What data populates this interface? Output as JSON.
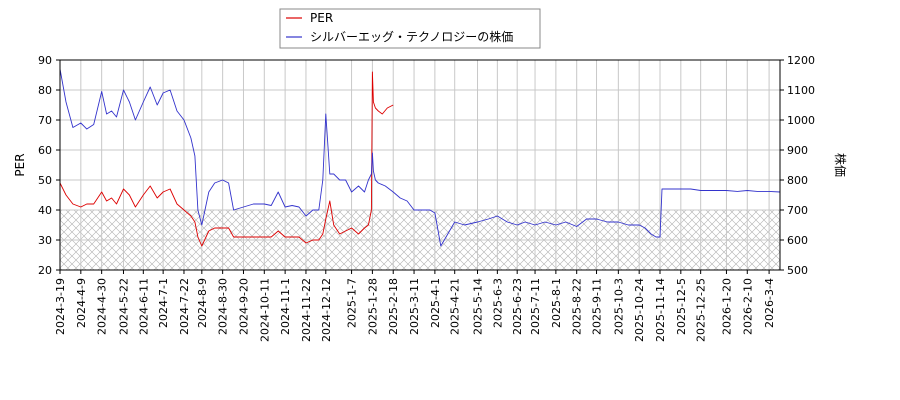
{
  "chart_data": {
    "type": "line",
    "legend_position": "top-center",
    "grid": true,
    "colors": {
      "per": "#dd0000",
      "price": "#3333cc",
      "grid": "#c8c8c8",
      "hatch": "#b0b0b0"
    },
    "y_left": {
      "label": "PER",
      "range": [
        20,
        90
      ],
      "ticks": [
        20,
        30,
        40,
        50,
        60,
        70,
        80,
        90
      ],
      "hatch_below": 40
    },
    "y_right": {
      "label": "株価",
      "range": [
        500,
        1200
      ],
      "ticks": [
        500,
        600,
        700,
        800,
        900,
        1000,
        1100,
        1200
      ]
    },
    "x_range": [
      "2024-03-19",
      "2026-03-15"
    ],
    "x_ticks": [
      "2024-3-19",
      "2024-4-9",
      "2024-4-30",
      "2024-5-22",
      "2024-6-11",
      "2024-7-1",
      "2024-7-22",
      "2024-8-9",
      "2024-8-30",
      "2024-9-20",
      "2024-10-11",
      "2024-11-1",
      "2024-11-22",
      "2024-12-12",
      "2025-1-7",
      "2025-1-28",
      "2025-2-18",
      "2025-3-11",
      "2025-4-1",
      "2025-4-21",
      "2025-5-14",
      "2025-6-3",
      "2025-6-23",
      "2025-7-11",
      "2025-8-1",
      "2025-8-22",
      "2025-9-11",
      "2025-10-3",
      "2025-10-24",
      "2025-11-14",
      "2025-12-5",
      "2025-12-25",
      "2026-1-20",
      "2026-2-10",
      "2026-3-4"
    ],
    "series": [
      {
        "name": "PER",
        "axis": "left",
        "x": [
          "2024-03-19",
          "2024-03-25",
          "2024-04-01",
          "2024-04-09",
          "2024-04-15",
          "2024-04-22",
          "2024-04-30",
          "2024-05-05",
          "2024-05-10",
          "2024-05-15",
          "2024-05-22",
          "2024-05-28",
          "2024-06-03",
          "2024-06-11",
          "2024-06-18",
          "2024-06-25",
          "2024-07-01",
          "2024-07-08",
          "2024-07-15",
          "2024-07-22",
          "2024-07-29",
          "2024-08-02",
          "2024-08-05",
          "2024-08-09",
          "2024-08-16",
          "2024-08-22",
          "2024-08-30",
          "2024-09-05",
          "2024-09-10",
          "2024-09-20",
          "2024-09-30",
          "2024-10-11",
          "2024-10-18",
          "2024-10-25",
          "2024-11-01",
          "2024-11-08",
          "2024-11-15",
          "2024-11-22",
          "2024-11-29",
          "2024-12-05",
          "2024-12-09",
          "2024-12-12",
          "2024-12-16",
          "2024-12-20",
          "2024-12-26",
          "2025-01-01",
          "2025-01-07",
          "2025-01-14",
          "2025-01-20",
          "2025-01-24",
          "2025-01-27",
          "2025-01-28",
          "2025-01-29",
          "2025-01-31",
          "2025-02-03",
          "2025-02-07",
          "2025-02-12",
          "2025-02-18"
        ],
        "y": [
          49,
          45,
          42,
          41,
          42,
          42,
          46,
          43,
          44,
          42,
          47,
          45,
          41,
          45,
          48,
          44,
          46,
          47,
          42,
          40,
          38,
          36,
          31,
          28,
          33,
          34,
          34,
          34,
          31,
          31,
          31,
          31,
          31,
          33,
          31,
          31,
          31,
          29,
          30,
          30,
          32,
          37,
          43,
          35,
          32,
          33,
          34,
          32,
          34,
          35,
          40,
          86,
          76,
          74,
          73,
          72,
          74,
          75
        ]
      },
      {
        "name": "シルバーエッグ・テクノロジーの株価",
        "axis": "right",
        "x": [
          "2024-03-19",
          "2024-03-25",
          "2024-04-01",
          "2024-04-09",
          "2024-04-15",
          "2024-04-22",
          "2024-04-30",
          "2024-05-05",
          "2024-05-10",
          "2024-05-15",
          "2024-05-22",
          "2024-05-28",
          "2024-06-03",
          "2024-06-11",
          "2024-06-18",
          "2024-06-25",
          "2024-07-01",
          "2024-07-08",
          "2024-07-15",
          "2024-07-22",
          "2024-07-29",
          "2024-08-02",
          "2024-08-05",
          "2024-08-09",
          "2024-08-16",
          "2024-08-22",
          "2024-08-30",
          "2024-09-05",
          "2024-09-10",
          "2024-09-20",
          "2024-09-30",
          "2024-10-11",
          "2024-10-18",
          "2024-10-25",
          "2024-11-01",
          "2024-11-08",
          "2024-11-15",
          "2024-11-22",
          "2024-11-29",
          "2024-12-05",
          "2024-12-09",
          "2024-12-12",
          "2024-12-16",
          "2024-12-20",
          "2024-12-26",
          "2025-01-01",
          "2025-01-07",
          "2025-01-14",
          "2025-01-20",
          "2025-01-24",
          "2025-01-27",
          "2025-01-28",
          "2025-01-29",
          "2025-01-31",
          "2025-02-03",
          "2025-02-10",
          "2025-02-18",
          "2025-02-25",
          "2025-03-04",
          "2025-03-11",
          "2025-03-20",
          "2025-03-27",
          "2025-04-01",
          "2025-04-07",
          "2025-04-14",
          "2025-04-21",
          "2025-05-01",
          "2025-05-14",
          "2025-05-25",
          "2025-06-03",
          "2025-06-13",
          "2025-06-23",
          "2025-07-01",
          "2025-07-11",
          "2025-07-21",
          "2025-08-01",
          "2025-08-11",
          "2025-08-22",
          "2025-09-01",
          "2025-09-11",
          "2025-09-22",
          "2025-10-03",
          "2025-10-13",
          "2025-10-24",
          "2025-10-30",
          "2025-11-05",
          "2025-11-10",
          "2025-11-14",
          "2025-11-16",
          "2025-11-24",
          "2025-12-05",
          "2025-12-15",
          "2025-12-25",
          "2026-01-08",
          "2026-01-20",
          "2026-01-31",
          "2026-02-10",
          "2026-02-20",
          "2026-03-04",
          "2026-03-15"
        ],
        "y": [
          1170,
          1060,
          975,
          990,
          970,
          985,
          1095,
          1020,
          1030,
          1010,
          1100,
          1060,
          1000,
          1060,
          1110,
          1050,
          1090,
          1100,
          1030,
          1000,
          940,
          880,
          700,
          650,
          760,
          790,
          800,
          790,
          700,
          710,
          720,
          720,
          715,
          760,
          710,
          715,
          710,
          680,
          700,
          700,
          800,
          1020,
          820,
          820,
          800,
          800,
          760,
          780,
          760,
          800,
          820,
          890,
          830,
          800,
          790,
          780,
          760,
          740,
          730,
          700,
          700,
          700,
          690,
          580,
          620,
          660,
          650,
          660,
          670,
          680,
          660,
          650,
          660,
          650,
          660,
          650,
          660,
          645,
          670,
          670,
          660,
          660,
          650,
          650,
          640,
          620,
          610,
          610,
          770,
          770,
          770,
          770,
          765,
          765,
          765,
          762,
          765,
          762,
          762,
          760
        ]
      }
    ]
  }
}
